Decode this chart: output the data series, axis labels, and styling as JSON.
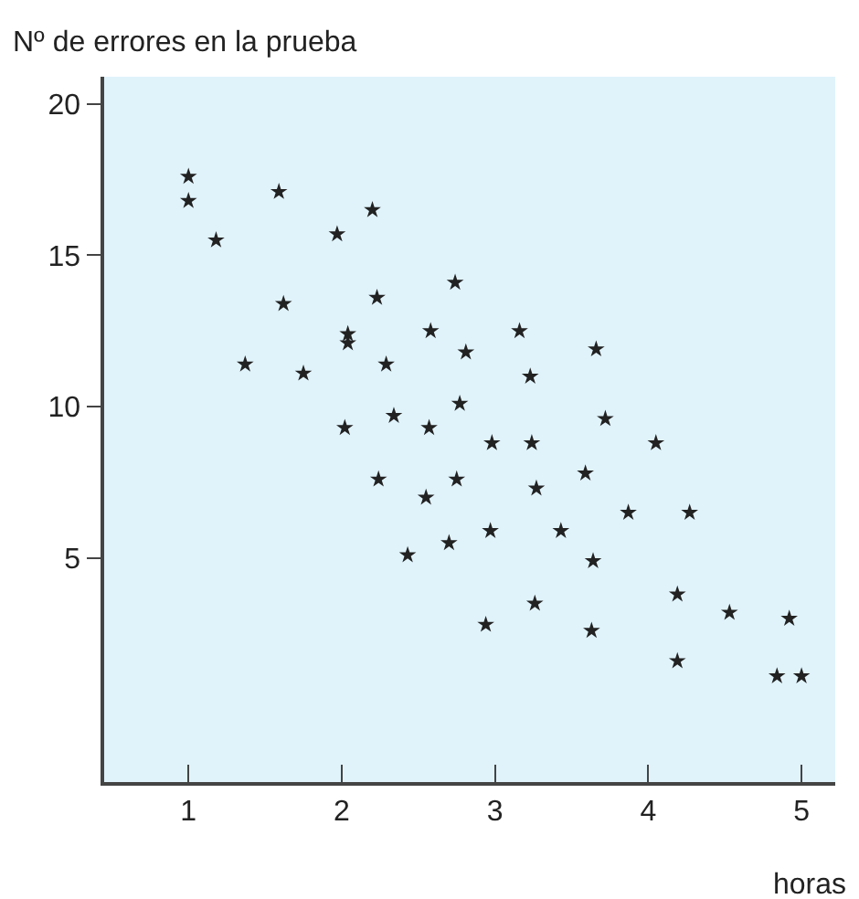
{
  "chart_data": {
    "type": "scatter",
    "xlabel": "horas",
    "ylabel": "Nº de errores en la prueba",
    "x": [
      1.0,
      1.0,
      1.18,
      1.59,
      1.97,
      2.2,
      1.62,
      2.23,
      2.74,
      2.04,
      2.04,
      2.58,
      3.16,
      2.81,
      3.66,
      1.37,
      1.75,
      2.29,
      3.23,
      2.77,
      2.34,
      2.02,
      2.57,
      2.98,
      3.24,
      3.72,
      4.05,
      2.24,
      2.75,
      3.27,
      3.59,
      2.55,
      3.87,
      4.27,
      2.43,
      2.7,
      2.97,
      3.43,
      3.64,
      4.19,
      3.26,
      4.53,
      4.92,
      2.94,
      3.63,
      4.19,
      4.84,
      5.0
    ],
    "values": [
      17.6,
      16.8,
      15.5,
      17.1,
      15.7,
      16.5,
      13.4,
      13.6,
      14.1,
      12.4,
      12.1,
      12.5,
      12.5,
      11.8,
      11.9,
      11.4,
      11.1,
      11.4,
      11.0,
      10.1,
      9.7,
      9.3,
      9.3,
      8.8,
      8.8,
      9.6,
      8.8,
      7.6,
      7.6,
      7.3,
      7.8,
      7.0,
      6.5,
      6.5,
      5.1,
      5.5,
      5.9,
      5.9,
      4.9,
      3.8,
      3.5,
      3.2,
      3.0,
      2.8,
      2.6,
      1.6,
      1.1,
      1.1
    ],
    "color": "#222222",
    "marker": "star",
    "xlim": [
      0.45,
      5.22
    ],
    "ylim": [
      -2.4,
      20.9
    ],
    "xticks": [
      1,
      2,
      3,
      4,
      5
    ],
    "yticks": [
      5,
      10,
      15,
      20
    ],
    "grid": false,
    "legend": false
  }
}
